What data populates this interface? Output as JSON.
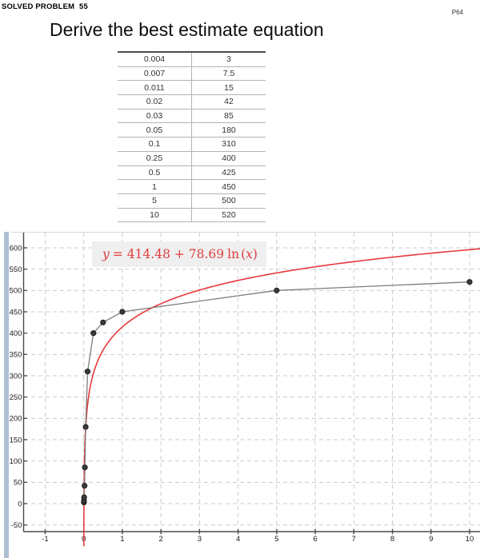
{
  "page": {
    "kicker": "SOLVED PROBLEM  55",
    "page_ref": "P64",
    "title": "Derive the best estimate equation"
  },
  "table": {
    "rows": [
      [
        "0.004",
        "3"
      ],
      [
        "0.007",
        "7.5"
      ],
      [
        "0.011",
        "15"
      ],
      [
        "0.02",
        "42"
      ],
      [
        "0.03",
        "85"
      ],
      [
        "0.05",
        "180"
      ],
      [
        "0.1",
        "310"
      ],
      [
        "0.25",
        "400"
      ],
      [
        "0.5",
        "425"
      ],
      [
        "1",
        "450"
      ],
      [
        "5",
        "500"
      ],
      [
        "10",
        "520"
      ]
    ]
  },
  "chart_data": {
    "type": "scatter",
    "title": "",
    "xlabel": "",
    "ylabel": "",
    "points": [
      [
        0.004,
        3
      ],
      [
        0.007,
        7.5
      ],
      [
        0.011,
        15
      ],
      [
        0.02,
        42
      ],
      [
        0.03,
        85
      ],
      [
        0.05,
        180
      ],
      [
        0.1,
        310
      ],
      [
        0.25,
        400
      ],
      [
        0.5,
        425
      ],
      [
        1,
        450
      ],
      [
        5,
        500
      ],
      [
        10,
        520
      ]
    ],
    "fit": {
      "type": "log",
      "a": 414.48,
      "b": 78.69
    },
    "equation": {
      "lhs": "y",
      "rhs": "= 414.48 + 78.69",
      "func": "ln",
      "open": "(",
      "arg": "x",
      "close": ")"
    },
    "x_ticks": [
      -1,
      0,
      1,
      2,
      3,
      4,
      5,
      6,
      7,
      8,
      9,
      10
    ],
    "y_ticks": [
      -50,
      0,
      50,
      100,
      150,
      200,
      250,
      300,
      350,
      400,
      450,
      500,
      550,
      600
    ],
    "xlim": [
      -1.57,
      10.28
    ],
    "ylim": [
      -130,
      636
    ],
    "grid": true,
    "legend_position": "none"
  },
  "colors": {
    "fit_curve": "#e8393c",
    "equation_text": "#e03c3e",
    "equation_bg": "#efefef",
    "data_line": "#7d7d7d",
    "data_point_fill": "#3c3c3c",
    "data_point_edge": "#1a1a1a",
    "grid": "#cbcbcb",
    "axis": "#4a4a4a",
    "edge_strip": "#aebfd3",
    "table_border": "#b3b3b3"
  }
}
